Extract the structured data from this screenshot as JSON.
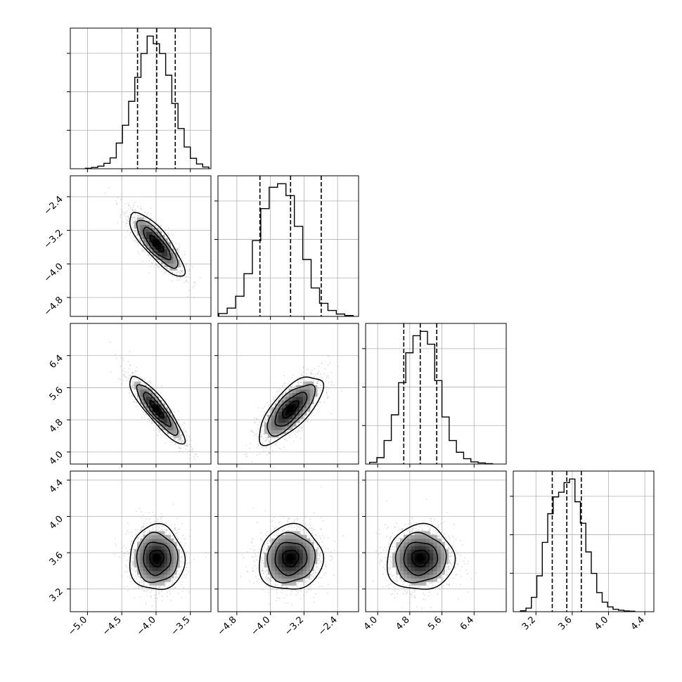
{
  "chart_data": {
    "type": "corner",
    "parameters": [
      {
        "index": 0,
        "range": [
          -5.25,
          -3.2
        ],
        "ticks": [
          -5.0,
          -4.5,
          -4.0,
          -3.5
        ],
        "tick_labels": [
          "−5.0",
          "−4.5",
          "−4.0",
          "−3.5"
        ]
      },
      {
        "index": 1,
        "range": [
          -5.25,
          -1.9
        ],
        "ticks": [
          -4.8,
          -4.0,
          -3.2,
          -2.4
        ],
        "tick_labels": [
          "−4.8",
          "−4.0",
          "−3.2",
          "−2.4"
        ]
      },
      {
        "index": 2,
        "range": [
          3.7,
          7.2
        ],
        "ticks": [
          4.0,
          4.8,
          5.6,
          6.4
        ],
        "tick_labels": [
          "4.0",
          "4.8",
          "5.6",
          "6.4"
        ]
      },
      {
        "index": 3,
        "range": [
          2.95,
          4.5
        ],
        "ticks": [
          3.2,
          3.6,
          4.0,
          4.4
        ],
        "tick_labels": [
          "3.2",
          "3.6",
          "4.0",
          "4.4"
        ]
      }
    ],
    "marginals": [
      {
        "param": 0,
        "quantiles": [
          -4.27,
          -3.99,
          -3.72
        ],
        "bin_edges": [
          -5.03,
          -4.94,
          -4.85,
          -4.76,
          -4.67,
          -4.58,
          -4.49,
          -4.4,
          -4.31,
          -4.22,
          -4.13,
          -4.04,
          -3.95,
          -3.86,
          -3.77,
          -3.68,
          -3.59,
          -3.5,
          -3.41,
          -3.32,
          -3.23
        ],
        "counts": [
          2,
          6,
          12,
          25,
          50,
          118,
          200,
          310,
          420,
          530,
          610,
          575,
          530,
          430,
          300,
          185,
          100,
          48,
          22,
          8
        ]
      },
      {
        "param": 1,
        "quantiles": [
          -4.25,
          -3.52,
          -2.79
        ],
        "bin_edges": [
          -5.23,
          -5.03,
          -4.83,
          -4.63,
          -4.43,
          -4.23,
          -4.03,
          -3.83,
          -3.63,
          -3.43,
          -3.23,
          -3.03,
          -2.83,
          -2.63,
          -2.43,
          -2.23,
          -2.03
        ],
        "counts": [
          12,
          35,
          85,
          180,
          320,
          455,
          545,
          560,
          510,
          380,
          240,
          120,
          55,
          25,
          10,
          4
        ]
      },
      {
        "param": 2,
        "quantiles": [
          4.65,
          5.06,
          5.47
        ],
        "bin_edges": [
          3.8,
          3.98,
          4.16,
          4.34,
          4.52,
          4.7,
          4.88,
          5.06,
          5.24,
          5.42,
          5.6,
          5.78,
          5.96,
          6.14,
          6.32,
          6.5,
          6.68,
          6.86
        ],
        "counts": [
          8,
          30,
          110,
          230,
          380,
          520,
          600,
          620,
          560,
          390,
          220,
          110,
          55,
          25,
          10,
          5,
          2
        ]
      },
      {
        "param": 3,
        "quantiles": [
          3.38,
          3.54,
          3.7
        ],
        "bin_edges": [
          3.03,
          3.09,
          3.15,
          3.21,
          3.27,
          3.33,
          3.39,
          3.45,
          3.51,
          3.57,
          3.63,
          3.69,
          3.75,
          3.81,
          3.87,
          3.93,
          3.99,
          4.05,
          4.11,
          4.17,
          4.23,
          4.29
        ],
        "counts": [
          4,
          15,
          60,
          150,
          290,
          410,
          480,
          500,
          540,
          555,
          460,
          370,
          250,
          160,
          80,
          40,
          20,
          10,
          6,
          3,
          2
        ]
      }
    ],
    "joints": [
      {
        "x_param": 0,
        "y_param": 1,
        "center": [
          -3.99,
          -3.52
        ],
        "std": [
          0.2,
          0.38
        ],
        "correlation": -0.82
      },
      {
        "x_param": 0,
        "y_param": 2,
        "center": [
          -3.99,
          5.06
        ],
        "std": [
          0.2,
          0.42
        ],
        "correlation": -0.88
      },
      {
        "x_param": 1,
        "y_param": 2,
        "center": [
          -3.52,
          5.06
        ],
        "std": [
          0.38,
          0.42
        ],
        "correlation": 0.72
      },
      {
        "x_param": 0,
        "y_param": 3,
        "center": [
          -3.99,
          3.54
        ],
        "std": [
          0.2,
          0.18
        ],
        "correlation": 0.0
      },
      {
        "x_param": 1,
        "y_param": 3,
        "center": [
          -3.52,
          3.54
        ],
        "std": [
          0.38,
          0.18
        ],
        "correlation": 0.05
      },
      {
        "x_param": 2,
        "y_param": 3,
        "center": [
          5.06,
          3.54
        ],
        "std": [
          0.42,
          0.18
        ],
        "correlation": 0.03
      }
    ],
    "contour_levels_sigma": [
      0.5,
      1.0,
      1.5,
      2.0
    ],
    "grid": true,
    "colors": {
      "line": "#000000",
      "points": "#9a9a9a",
      "grid": "#b0b0b0"
    }
  }
}
